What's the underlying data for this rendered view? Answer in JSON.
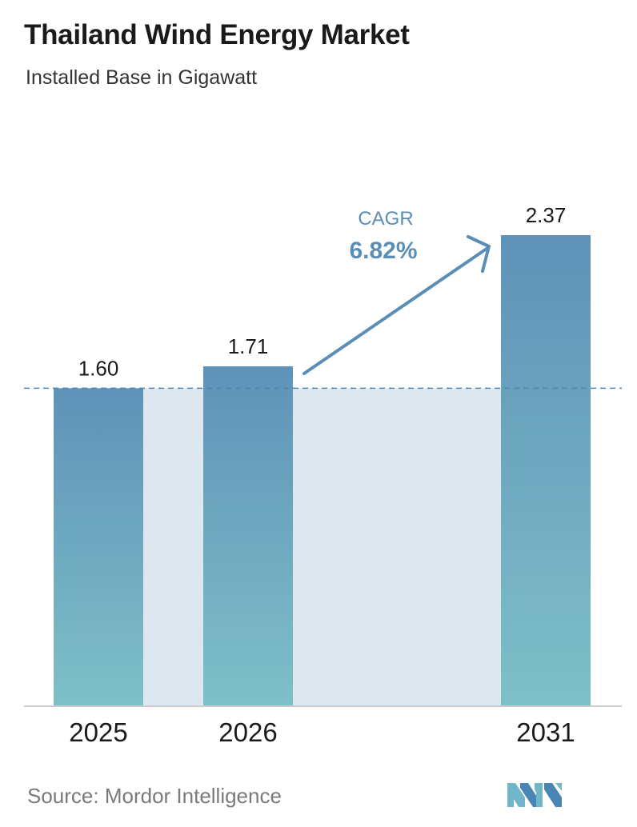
{
  "header": {
    "title": "Thailand Wind Energy Market",
    "subtitle": "Installed Base in Gigawatt"
  },
  "chart_data": {
    "type": "bar",
    "title": "Thailand Wind Energy Market",
    "subtitle": "Installed Base in Gigawatt",
    "categories": [
      "2025",
      "2026",
      "2031"
    ],
    "values": [
      1.6,
      1.71,
      2.37
    ],
    "value_labels": [
      "1.60",
      "1.71",
      "2.37"
    ],
    "ylim": [
      0,
      2.37
    ],
    "grid": false,
    "reference_line_value": 1.6,
    "annotation": {
      "label": "CAGR",
      "value": "6.82%"
    }
  },
  "colors": {
    "bar_top": "#5f92b8",
    "bar_bottom": "#7ec0c8",
    "band": "#dde7f0",
    "reference_line": "#4f87b3",
    "arrow": "#5b8eb6",
    "cagr_text": "#5b8eb6"
  },
  "footer": {
    "source": "Source:  Mordor Intelligence",
    "logo_icon": "mordor-intelligence-logo-icon"
  }
}
